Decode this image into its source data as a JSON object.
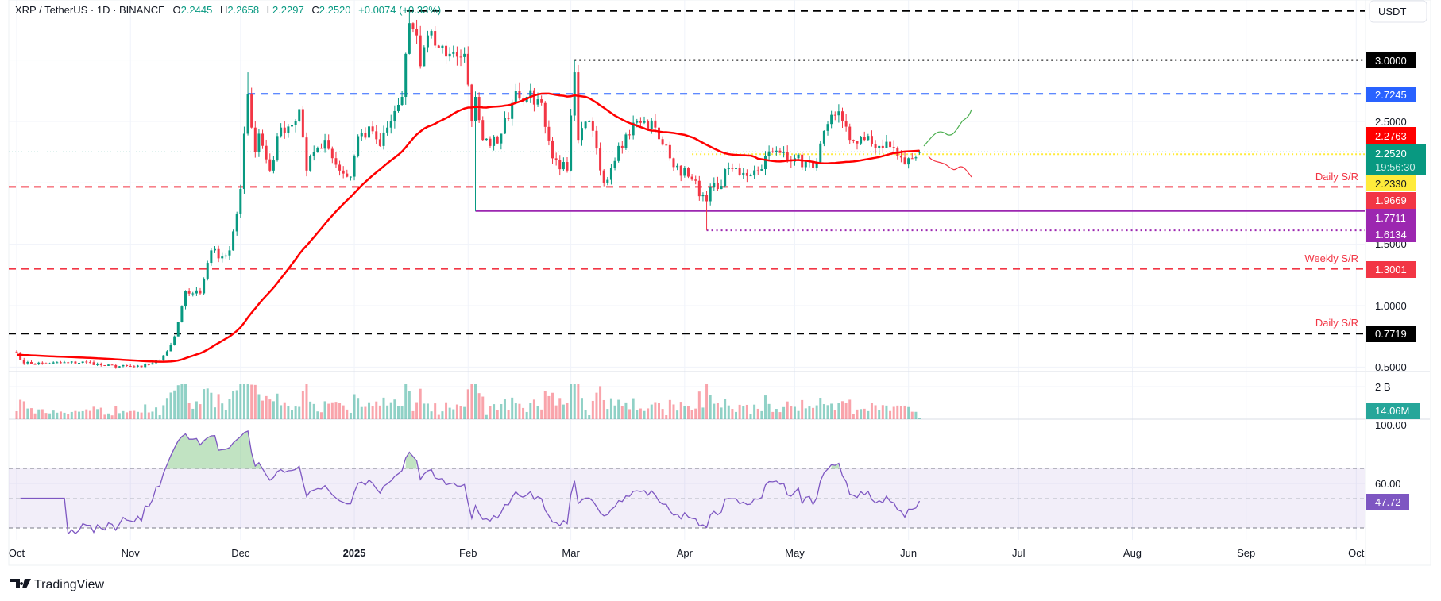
{
  "header": {
    "symbol": "XRP / TetherUS · 1D · BINANCE",
    "o_label": "O",
    "o": "2.2445",
    "h_label": "H",
    "h": "2.2658",
    "l_label": "L",
    "l": "2.2297",
    "c_label": "C",
    "c": "2.2520",
    "change": "+0.0074 (+0.33%)"
  },
  "currency_button": "USDT",
  "brand": "TradingView",
  "colors": {
    "up": "#089981",
    "down": "#f23645",
    "ma": "#ff0000",
    "rsi": "#7e57c2",
    "blue_level": "#2962ff",
    "purple_level": "#9c27b0",
    "yellow_level": "#ffeb3b"
  },
  "chart_data": {
    "type": "candlestick",
    "interval": "1D",
    "y_scale": "linear",
    "ylim": [
      0.45,
      3.45
    ],
    "x_ticks": [
      "Oct",
      "Nov",
      "Dec",
      "2025",
      "Feb",
      "Mar",
      "Apr",
      "May",
      "Jun",
      "Jul",
      "Aug",
      "Sep",
      "Oct"
    ],
    "y_ticks": [
      "2.5000",
      "1.5000",
      "1.0000",
      "0.5000"
    ],
    "levels": {
      "top_dashed": {
        "value": 3.4
      },
      "dotted_3": {
        "value": 3.0,
        "label": "3.0000"
      },
      "blue": {
        "value": 2.7245,
        "label": "2.7245"
      },
      "ma_value": {
        "value": 2.2763,
        "label": "2.2763"
      },
      "last": {
        "value": 2.252,
        "label": "2.2520",
        "countdown": "19:56:30"
      },
      "yellow": {
        "value": 2.233,
        "label": "2.2330"
      },
      "daily_sr_1": {
        "value": 1.9669,
        "label": "1.9669",
        "text": "Daily S/R"
      },
      "purple_solid": {
        "value": 1.7711,
        "label": "1.7711"
      },
      "purple_dotted": {
        "value": 1.6134,
        "label": "1.6134"
      },
      "weekly_sr": {
        "value": 1.3001,
        "label": "1.3001",
        "text": "Weekly S/R"
      },
      "daily_sr_2": {
        "value": 0.7719,
        "label": "0.7719",
        "text": "Daily S/R"
      }
    },
    "approx_closes": [
      [
        "2024-10-01",
        0.62
      ],
      [
        "2024-10-03",
        0.53
      ],
      [
        "2024-10-10",
        0.53
      ],
      [
        "2024-10-20",
        0.54
      ],
      [
        "2024-10-25",
        0.51
      ],
      [
        "2024-11-04",
        0.5
      ],
      [
        "2024-11-09",
        0.56
      ],
      [
        "2024-11-12",
        0.68
      ],
      [
        "2024-11-13",
        0.75
      ],
      [
        "2024-11-16",
        1.12
      ],
      [
        "2024-11-18",
        1.1
      ],
      [
        "2024-11-20",
        1.1
      ],
      [
        "2024-11-23",
        1.45
      ],
      [
        "2024-11-26",
        1.4
      ],
      [
        "2024-11-28",
        1.45
      ],
      [
        "2024-11-30",
        1.75
      ],
      [
        "2024-12-01",
        1.95
      ],
      [
        "2024-12-02",
        2.4
      ],
      [
        "2024-12-03",
        2.72
      ],
      [
        "2024-12-04",
        2.45
      ],
      [
        "2024-12-05",
        2.25
      ],
      [
        "2024-12-06",
        2.4
      ],
      [
        "2024-12-09",
        2.1
      ],
      [
        "2024-12-12",
        2.45
      ],
      [
        "2024-12-16",
        2.5
      ],
      [
        "2024-12-17",
        2.6
      ],
      [
        "2024-12-19",
        2.1
      ],
      [
        "2024-12-21",
        2.25
      ],
      [
        "2024-12-24",
        2.35
      ],
      [
        "2024-12-28",
        2.1
      ],
      [
        "2024-12-31",
        2.05
      ],
      [
        "2025-01-02",
        2.38
      ],
      [
        "2025-01-06",
        2.42
      ],
      [
        "2025-01-08",
        2.3
      ],
      [
        "2025-01-11",
        2.5
      ],
      [
        "2025-01-14",
        2.7
      ],
      [
        "2025-01-15",
        3.05
      ],
      [
        "2025-01-16",
        3.3
      ],
      [
        "2025-01-18",
        3.2
      ],
      [
        "2025-01-19",
        2.95
      ],
      [
        "2025-01-21",
        3.2
      ],
      [
        "2025-01-24",
        3.1
      ],
      [
        "2025-01-27",
        3.05
      ],
      [
        "2025-01-31",
        3.05
      ],
      [
        "2025-02-01",
        2.8
      ],
      [
        "2025-02-02",
        2.5
      ],
      [
        "2025-02-03",
        2.7
      ],
      [
        "2025-02-05",
        2.35
      ],
      [
        "2025-02-07",
        2.3
      ],
      [
        "2025-02-10",
        2.4
      ],
      [
        "2025-02-14",
        2.75
      ],
      [
        "2025-02-17",
        2.7
      ],
      [
        "2025-02-21",
        2.65
      ],
      [
        "2025-02-24",
        2.2
      ],
      [
        "2025-02-28",
        2.1
      ],
      [
        "2025-03-02",
        2.9
      ],
      [
        "2025-03-03",
        2.35
      ],
      [
        "2025-03-06",
        2.5
      ],
      [
        "2025-03-10",
        2.0
      ],
      [
        "2025-03-14",
        2.3
      ],
      [
        "2025-03-19",
        2.5
      ],
      [
        "2025-03-24",
        2.45
      ],
      [
        "2025-03-28",
        2.2
      ],
      [
        "2025-04-02",
        2.05
      ],
      [
        "2025-04-06",
        1.9
      ],
      [
        "2025-04-07",
        1.85
      ],
      [
        "2025-04-09",
        2.0
      ],
      [
        "2025-04-10",
        1.95
      ],
      [
        "2025-04-13",
        2.12
      ],
      [
        "2025-04-17",
        2.08
      ],
      [
        "2025-04-21",
        2.1
      ],
      [
        "2025-04-23",
        2.22
      ],
      [
        "2025-04-28",
        2.25
      ],
      [
        "2025-05-01",
        2.2
      ],
      [
        "2025-05-06",
        2.12
      ],
      [
        "2025-05-08",
        2.32
      ],
      [
        "2025-05-12",
        2.55
      ],
      [
        "2025-05-14",
        2.5
      ],
      [
        "2025-05-16",
        2.35
      ],
      [
        "2025-05-20",
        2.35
      ],
      [
        "2025-05-24",
        2.3
      ],
      [
        "2025-05-28",
        2.28
      ],
      [
        "2025-05-31",
        2.15
      ],
      [
        "2025-06-02",
        2.2
      ],
      [
        "2025-06-04",
        2.252
      ]
    ],
    "wick_extremes": [
      [
        "2024-12-03",
        "high",
        2.9
      ],
      [
        "2025-01-16",
        "high",
        3.4
      ],
      [
        "2025-02-03",
        "low",
        1.77
      ],
      [
        "2025-03-02",
        "high",
        3.0
      ],
      [
        "2025-04-07",
        "low",
        1.6134
      ]
    ],
    "last_candle": {
      "date": "2025-06-04",
      "open": 2.2445,
      "high": 2.2658,
      "low": 2.2297,
      "close": 2.252
    },
    "moving_average": {
      "type": "SMA",
      "period": 50,
      "last": 2.2763
    },
    "volume": {
      "tick": "2 B",
      "last": "14.06M"
    },
    "rsi": {
      "period": 14,
      "ticks": [
        "100.00",
        "60.00"
      ],
      "last": "47.72",
      "upper_band": 70,
      "lower_band": 30,
      "mid": 50
    },
    "projections": [
      {
        "direction": "up",
        "color": "#4caf50"
      },
      {
        "direction": "down",
        "color": "#f23645"
      }
    ]
  }
}
